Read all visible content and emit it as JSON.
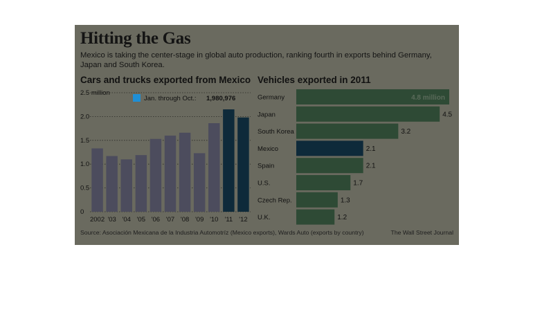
{
  "header": {
    "title": "Hitting the Gas",
    "subtitle": "Mexico is taking the center-stage in global auto production, ranking fourth in exports behind Germany, Japan and South Korea."
  },
  "footer": {
    "source": "Source:  Asociación Mexicana de la Industria Automotríz (Mexico exports), Wards Auto (exports by country)",
    "credit": "The Wall Street Journal"
  },
  "colors": {
    "background": "#6a6a5f",
    "green_bar": "#2e4a35",
    "highlight_bar": "#0e2a3a",
    "legend_square": "#1f8fd6"
  },
  "chart_data": [
    {
      "type": "bar",
      "title": "Cars and trucks exported from Mexico",
      "categories": [
        "2002",
        "'03",
        "'04",
        "'05",
        "'06",
        "'07",
        "'08",
        "'09",
        "'10",
        "'11",
        "'12"
      ],
      "values": [
        1.33,
        1.17,
        1.1,
        1.19,
        1.53,
        1.6,
        1.66,
        1.23,
        1.86,
        2.15,
        1.98
      ],
      "highlighted": [
        "'11",
        "'12"
      ],
      "yticks": [
        "0",
        "0.5",
        "1.0",
        "1.5",
        "2.0",
        "2.5 million"
      ],
      "ylim": [
        0,
        2.5
      ],
      "grid": true,
      "legend": {
        "label": "Jan. through Oct.:",
        "value": "1,980,976"
      }
    },
    {
      "type": "bar",
      "orientation": "horizontal",
      "title": "Vehicles exported in 2011",
      "categories": [
        "Germany",
        "Japan",
        "South Korea",
        "Mexico",
        "Spain",
        "U.S.",
        "Czech Rep.",
        "U.K."
      ],
      "values": [
        4.8,
        4.5,
        3.2,
        2.1,
        2.1,
        1.7,
        1.3,
        1.2
      ],
      "labels": [
        "4.8 million",
        "4.5",
        "3.2",
        "2.1",
        "2.1",
        "1.7",
        "1.3",
        "1.2"
      ],
      "highlighted": [
        "Mexico"
      ]
    }
  ]
}
